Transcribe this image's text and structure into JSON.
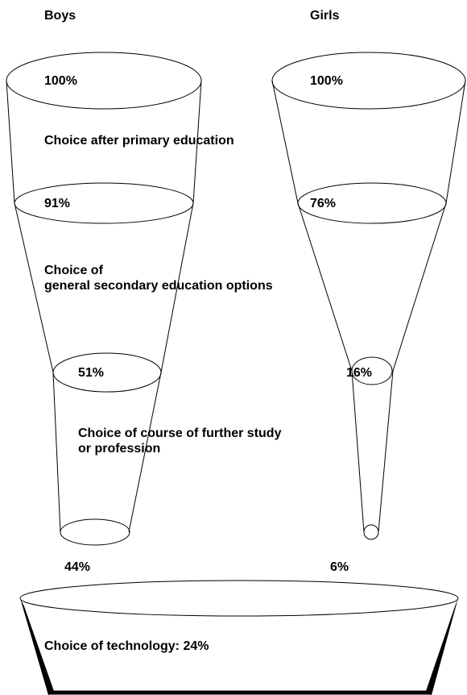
{
  "groups": [
    "Boys",
    "Girls"
  ],
  "levels": [
    {
      "boys": "100%",
      "girls": "100%"
    },
    {
      "boys": "91%",
      "girls": "76%"
    },
    {
      "boys": "51%",
      "girls": "16%"
    },
    {
      "boys": "44%",
      "girls": "6%"
    }
  ],
  "stages": [
    {
      "lines": [
        "Choice after primary education"
      ]
    },
    {
      "lines": [
        "Choice of",
        "general secondary education options"
      ]
    },
    {
      "lines": [
        "Choice of course of further study",
        "or profession"
      ]
    },
    {
      "lines": [
        "Choice of technology: 24%"
      ]
    }
  ]
}
